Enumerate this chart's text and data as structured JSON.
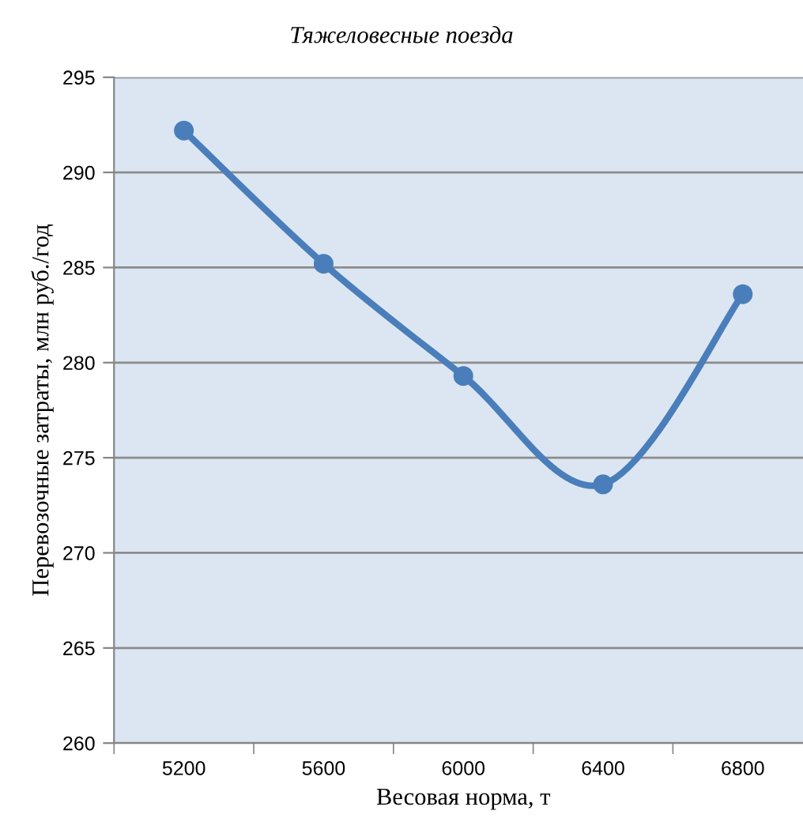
{
  "chart_data": {
    "type": "line",
    "title": "Тяжеловесные поезда",
    "xlabel": "Весовая норма, т",
    "ylabel": "Перевозочные затраты, млн руб./год",
    "categories": [
      "5200",
      "5600",
      "6000",
      "6400",
      "6800"
    ],
    "series": [
      {
        "color": "#4a7ebb",
        "values": [
          292.2,
          285.2,
          279.3,
          273.6,
          283.6
        ]
      }
    ],
    "ylim": [
      260,
      295
    ],
    "yticks": [
      260,
      265,
      270,
      275,
      280,
      285,
      290,
      295
    ],
    "grid": "y",
    "marker": "circle",
    "line_style": "solid",
    "legend": false
  }
}
